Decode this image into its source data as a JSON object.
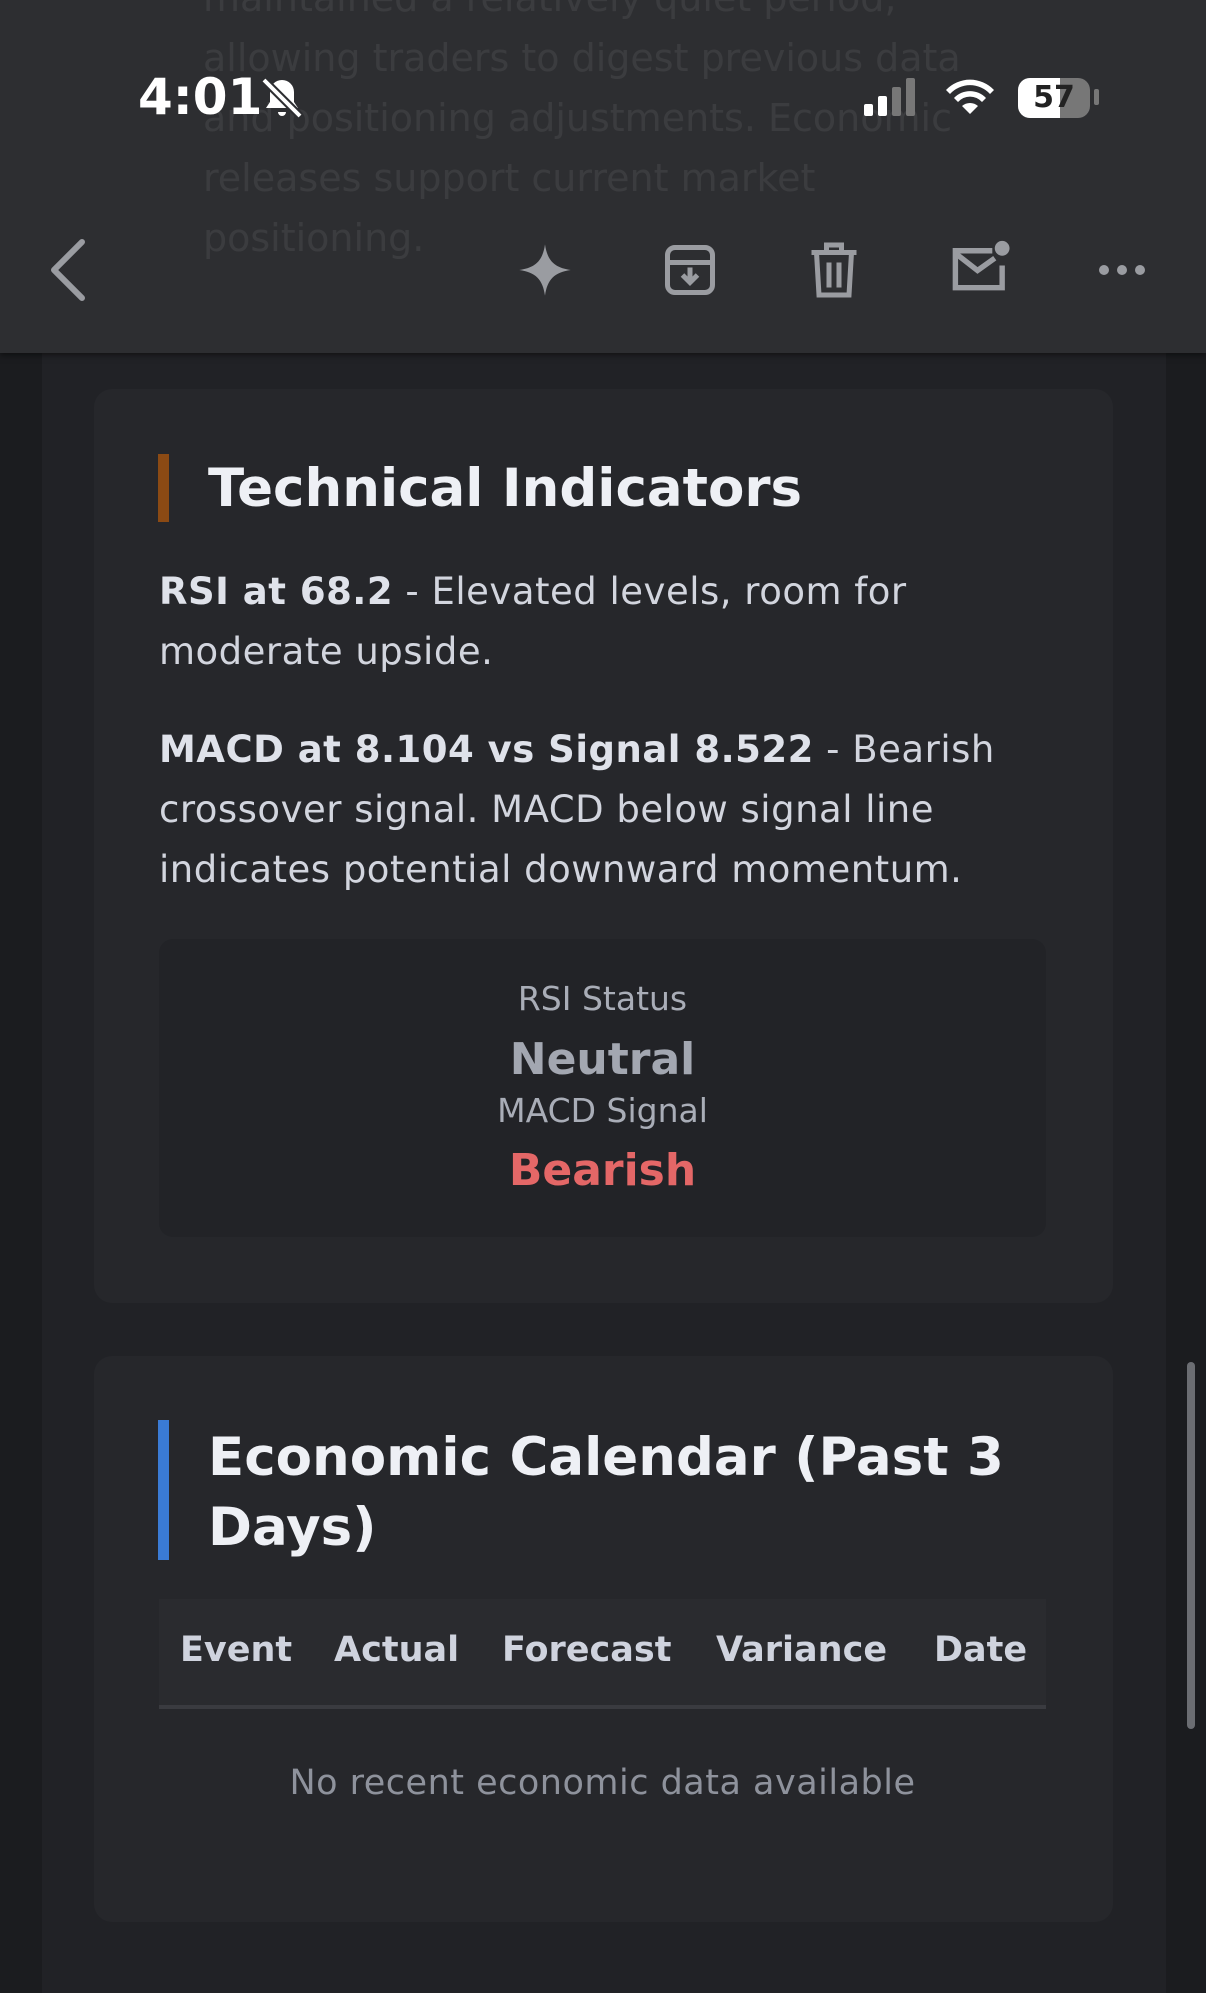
{
  "status_bar": {
    "time": "4:01",
    "battery": "57"
  },
  "background_text": "maintained a relatively quiet period, allowing traders to digest previous data and positioning adjustments. Economic releases support current market positioning.",
  "technical_indicators": {
    "title": "Technical Indicators",
    "rsi": {
      "label": "RSI at 68.2",
      "text": "- Elevated levels, room for moderate upside."
    },
    "macd": {
      "label": "MACD at 8.104 vs Signal 8.522",
      "text": "- Bearish crossover signal. MACD below signal line indicates potential downward momentum."
    },
    "status": {
      "rsi_label": "RSI Status",
      "rsi_value": "Neutral",
      "macd_label": "MACD Signal",
      "macd_value": "Bearish"
    }
  },
  "economic_calendar": {
    "title": "Economic Calendar (Past 3 Days)",
    "columns": [
      "Event",
      "Actual",
      "Forecast",
      "Variance",
      "Date"
    ],
    "empty_message": "No recent economic data available"
  }
}
